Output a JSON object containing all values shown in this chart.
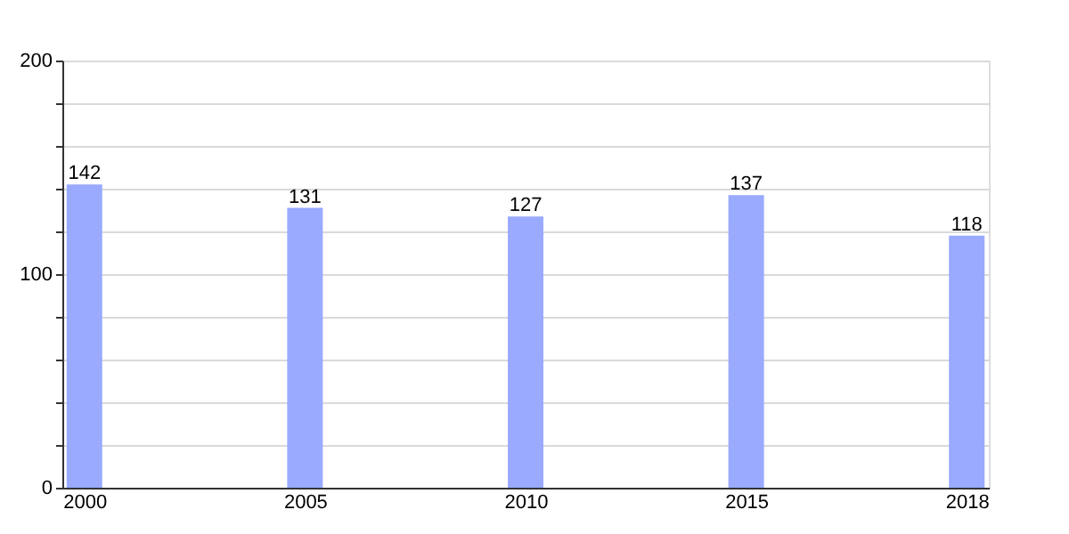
{
  "chart_data": {
    "type": "bar",
    "categories": [
      "2000",
      "2005",
      "2010",
      "2015",
      "2018"
    ],
    "values": [
      142,
      131,
      127,
      137,
      118
    ],
    "color": "#99aaff",
    "ylim": [
      0,
      200
    ],
    "yticks": [
      0,
      {
        "value": 20,
        "label": null
      },
      {
        "value": 40,
        "label": null
      },
      {
        "value": 60,
        "label": null
      },
      {
        "value": 80,
        "label": null
      },
      100,
      {
        "value": 120,
        "label": null
      },
      {
        "value": 140,
        "label": null
      },
      {
        "value": 160,
        "label": null
      },
      {
        "value": 180,
        "label": null
      },
      200
    ],
    "grid": "y",
    "data_labels": true
  }
}
